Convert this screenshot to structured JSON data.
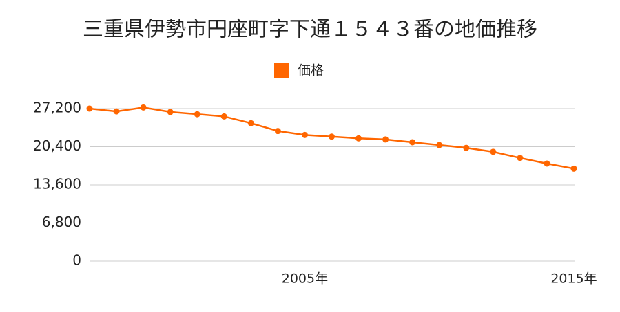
{
  "chart_data": {
    "type": "line",
    "title": "三重県伊勢市円座町字下通１５４３番の地価推移",
    "x": [
      1997,
      1998,
      1999,
      2000,
      2001,
      2002,
      2003,
      2004,
      2005,
      2006,
      2007,
      2008,
      2009,
      2010,
      2011,
      2012,
      2013,
      2014,
      2015
    ],
    "series": [
      {
        "name": "価格",
        "color": "#ff6600",
        "values": [
          27200,
          26700,
          27400,
          26600,
          26200,
          25800,
          24600,
          23200,
          22500,
          22200,
          21900,
          21700,
          21200,
          20700,
          20200,
          19500,
          18400,
          17400,
          16500
        ]
      }
    ],
    "xlim": [
      1997,
      2015
    ],
    "xticks": [
      {
        "value": 2005,
        "label": "2005年"
      },
      {
        "value": 2015,
        "label": "2015年"
      }
    ],
    "ylim": [
      0,
      27200
    ],
    "yticks": [
      0,
      {
        "value": 6800,
        "label": "6,800"
      },
      {
        "value": 13600,
        "label": "13,600"
      },
      {
        "value": 20400,
        "label": "20,400"
      },
      {
        "value": 27200,
        "label": "27,200"
      }
    ],
    "grid": true
  }
}
